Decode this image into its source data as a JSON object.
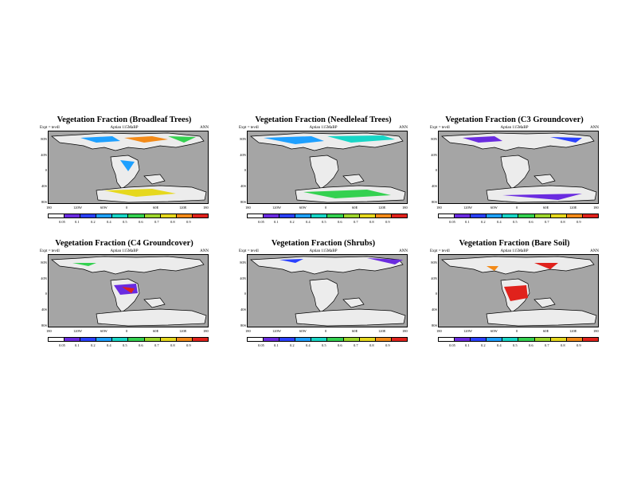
{
  "common": {
    "subtitle_left": "Expt = tevdl",
    "subtitle_center": "Aptian  115MaBP",
    "subtitle_right": "ANN",
    "lat_labels": [
      "80N",
      "40N",
      "0",
      "40S",
      "80S"
    ],
    "lon_labels": [
      "180",
      "120W",
      "60W",
      "0",
      "60E",
      "120E",
      "180"
    ],
    "colorbar_labels": [
      "0.05",
      "0.1",
      "0.2",
      "0.4",
      "0.5",
      "0.6",
      "0.7",
      "0.8",
      "0.9"
    ]
  },
  "colors": {
    "ocean": "#a5a5a5",
    "land_background": "#ececec",
    "scale": [
      "#ffffff",
      "#6a2be0",
      "#2a40ff",
      "#1ea0ff",
      "#18d6c6",
      "#34d150",
      "#9ed62c",
      "#e6d81e",
      "#f38a18",
      "#e0221c"
    ]
  },
  "panels": [
    {
      "title": "Vegetation Fraction (Broadleaf Trees)"
    },
    {
      "title": "Vegetation Fraction (Needleleaf Trees)"
    },
    {
      "title": "Vegetation Fraction (C3 Groundcover)"
    },
    {
      "title": "Vegetation Fraction (C4 Groundcover)"
    },
    {
      "title": "Vegetation Fraction (Shrubs)"
    },
    {
      "title": "Vegetation Fraction (Bare Soil)"
    }
  ]
}
